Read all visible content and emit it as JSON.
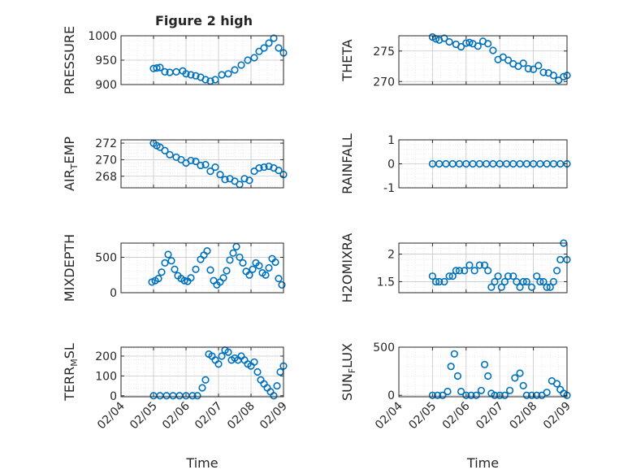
{
  "figure_title": "Figure 2 high",
  "x_axis_label": "Time",
  "x_ticks": [
    "02/04",
    "02/05",
    "02/06",
    "02/07",
    "02/08",
    "02/09"
  ],
  "colors": {
    "marker": "#0072BD",
    "axis": "#262626",
    "grid": "#dcdcdc"
  },
  "chart_data": [
    {
      "type": "scatter",
      "ylabel": "PRESSURE",
      "ylim": [
        900,
        1000
      ],
      "yticks": [
        "900",
        "950",
        "1000"
      ],
      "x": [
        5.0,
        5.1,
        5.2,
        5.35,
        5.5,
        5.7,
        5.9,
        6.0,
        6.15,
        6.3,
        6.45,
        6.6,
        6.75,
        6.9,
        7.1,
        7.3,
        7.5,
        7.7,
        7.9,
        8.1,
        8.25,
        8.4,
        8.55,
        8.7,
        8.85,
        9.0
      ],
      "y": [
        933,
        934,
        935,
        926,
        925,
        926,
        928,
        922,
        920,
        918,
        915,
        910,
        907,
        910,
        920,
        922,
        930,
        940,
        950,
        955,
        968,
        975,
        985,
        995,
        975,
        965
      ]
    },
    {
      "type": "scatter",
      "ylabel": "THETA",
      "ylim": [
        269.5,
        277.5
      ],
      "yticks": [
        "270",
        "275"
      ],
      "x": [
        5.0,
        5.1,
        5.2,
        5.35,
        5.5,
        5.7,
        5.85,
        6.0,
        6.1,
        6.2,
        6.35,
        6.5,
        6.65,
        6.8,
        6.95,
        7.1,
        7.25,
        7.4,
        7.55,
        7.7,
        7.85,
        8.0,
        8.15,
        8.3,
        8.45,
        8.6,
        8.75,
        8.9,
        9.0
      ],
      "y": [
        277.3,
        277.0,
        276.8,
        277.1,
        276.5,
        276.1,
        275.7,
        276.3,
        276.4,
        276.2,
        275.8,
        276.6,
        276.2,
        275.1,
        273.6,
        274.0,
        273.5,
        272.9,
        272.5,
        273.0,
        272.1,
        272.0,
        272.6,
        271.5,
        271.4,
        271.0,
        270.2,
        270.8,
        271.0
      ]
    },
    {
      "type": "scatter",
      "ylabel": "AIR_TEMP",
      "ylim": [
        266.6,
        272.4
      ],
      "yticks": [
        "268",
        "270",
        "272"
      ],
      "x": [
        5.0,
        5.1,
        5.2,
        5.35,
        5.5,
        5.7,
        5.85,
        6.0,
        6.15,
        6.3,
        6.45,
        6.6,
        6.75,
        6.9,
        7.05,
        7.2,
        7.35,
        7.5,
        7.65,
        7.8,
        7.95,
        8.1,
        8.25,
        8.4,
        8.55,
        8.7,
        8.85,
        9.0
      ],
      "y": [
        272.0,
        271.7,
        271.5,
        271.1,
        270.6,
        270.3,
        270.0,
        269.6,
        269.9,
        269.8,
        269.3,
        269.4,
        268.6,
        269.1,
        268.2,
        267.6,
        267.7,
        267.4,
        267.0,
        267.7,
        267.5,
        268.6,
        269.0,
        269.1,
        269.2,
        269.0,
        268.7,
        268.2
      ]
    },
    {
      "type": "scatter",
      "ylabel": "RAINFALL",
      "ylim": [
        -1,
        1
      ],
      "yticks": [
        "-1",
        "0",
        "1"
      ],
      "x": [
        5.0,
        5.2,
        5.4,
        5.6,
        5.8,
        6.0,
        6.2,
        6.4,
        6.6,
        6.8,
        7.0,
        7.2,
        7.4,
        7.6,
        7.8,
        8.0,
        8.2,
        8.4,
        8.6,
        8.8,
        9.0
      ],
      "y": [
        0,
        0,
        0,
        0,
        0,
        0,
        0,
        0,
        0,
        0,
        0,
        0,
        0,
        0,
        0,
        0,
        0,
        0,
        0,
        0,
        0
      ]
    },
    {
      "type": "scatter",
      "ylabel": "MIXDEPTH",
      "ylim": [
        0,
        700
      ],
      "yticks": [
        "0",
        "500"
      ],
      "x": [
        4.95,
        5.05,
        5.15,
        5.25,
        5.35,
        5.45,
        5.55,
        5.65,
        5.75,
        5.85,
        5.95,
        6.05,
        6.15,
        6.3,
        6.45,
        6.55,
        6.65,
        6.75,
        6.85,
        6.95,
        7.05,
        7.15,
        7.25,
        7.35,
        7.45,
        7.55,
        7.65,
        7.75,
        7.85,
        7.95,
        8.05,
        8.15,
        8.25,
        8.35,
        8.45,
        8.55,
        8.65,
        8.75,
        8.85,
        8.95
      ],
      "y": [
        150,
        170,
        200,
        290,
        420,
        540,
        450,
        330,
        240,
        200,
        170,
        160,
        210,
        330,
        470,
        530,
        590,
        320,
        170,
        110,
        150,
        210,
        310,
        460,
        560,
        650,
        500,
        420,
        300,
        250,
        330,
        420,
        380,
        280,
        250,
        350,
        480,
        430,
        200,
        110
      ]
    },
    {
      "type": "scatter",
      "ylabel": "H2OMIXRA",
      "ylim": [
        1.3,
        2.2
      ],
      "yticks": [
        "1.5",
        "2"
      ],
      "x": [
        5.0,
        5.1,
        5.2,
        5.35,
        5.5,
        5.6,
        5.7,
        5.8,
        5.95,
        6.1,
        6.25,
        6.4,
        6.55,
        6.65,
        6.75,
        6.85,
        6.95,
        7.05,
        7.15,
        7.25,
        7.4,
        7.5,
        7.6,
        7.7,
        7.8,
        7.95,
        8.1,
        8.2,
        8.3,
        8.4,
        8.5,
        8.6,
        8.7,
        8.8,
        8.9,
        9.0
      ],
      "y": [
        1.6,
        1.5,
        1.5,
        1.5,
        1.6,
        1.6,
        1.7,
        1.7,
        1.7,
        1.8,
        1.7,
        1.8,
        1.8,
        1.7,
        1.4,
        1.5,
        1.6,
        1.4,
        1.5,
        1.6,
        1.6,
        1.5,
        1.4,
        1.5,
        1.5,
        1.4,
        1.6,
        1.5,
        1.5,
        1.4,
        1.4,
        1.5,
        1.7,
        1.9,
        2.2,
        1.9
      ]
    },
    {
      "type": "scatter",
      "ylabel": "TERR_MSL",
      "ylim": [
        -5,
        245
      ],
      "yticks": [
        "0",
        "100",
        "200"
      ],
      "x": [
        5.0,
        5.2,
        5.4,
        5.6,
        5.8,
        6.0,
        6.2,
        6.35,
        6.5,
        6.6,
        6.7,
        6.8,
        6.9,
        7.0,
        7.1,
        7.2,
        7.3,
        7.4,
        7.5,
        7.6,
        7.7,
        7.8,
        7.9,
        8.0,
        8.1,
        8.2,
        8.3,
        8.4,
        8.5,
        8.6,
        8.7,
        8.8,
        8.9,
        9.0
      ],
      "y": [
        0,
        0,
        0,
        0,
        0,
        0,
        0,
        0,
        40,
        80,
        210,
        200,
        180,
        160,
        200,
        230,
        220,
        180,
        190,
        180,
        200,
        180,
        160,
        150,
        170,
        120,
        80,
        60,
        40,
        20,
        0,
        50,
        120,
        150
      ]
    },
    {
      "type": "scatter",
      "ylabel": "SUN_FLUX",
      "ylim": [
        -15,
        500
      ],
      "yticks": [
        "0",
        "500"
      ],
      "x": [
        5.0,
        5.15,
        5.3,
        5.45,
        5.55,
        5.65,
        5.75,
        5.85,
        6.0,
        6.15,
        6.3,
        6.45,
        6.55,
        6.65,
        6.75,
        6.85,
        7.0,
        7.15,
        7.3,
        7.45,
        7.6,
        7.7,
        7.8,
        7.95,
        8.1,
        8.25,
        8.4,
        8.55,
        8.7,
        8.8,
        8.9,
        9.0
      ],
      "y": [
        0,
        0,
        0,
        40,
        300,
        430,
        200,
        40,
        0,
        0,
        0,
        50,
        320,
        200,
        20,
        0,
        0,
        0,
        50,
        180,
        230,
        100,
        0,
        0,
        0,
        0,
        30,
        150,
        120,
        60,
        20,
        0
      ]
    }
  ]
}
